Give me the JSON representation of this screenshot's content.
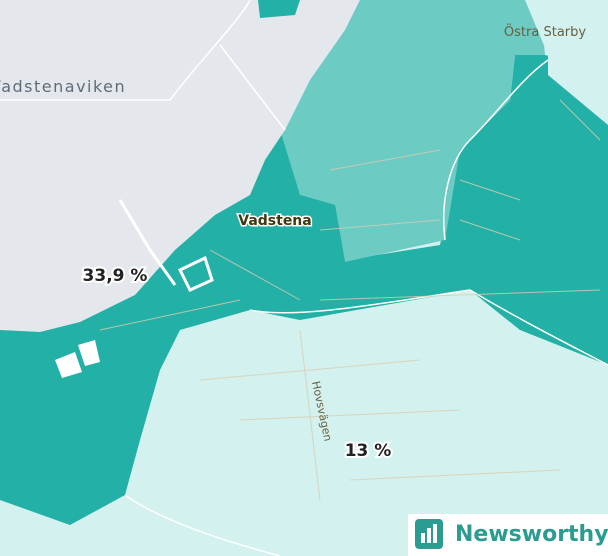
{
  "map": {
    "places": [
      "Vadstenaviken",
      "Östra Starby",
      "Vadstena"
    ],
    "streets": [
      "Hovsvägen"
    ],
    "region_labels": [
      "33,9 %",
      "13 %"
    ],
    "logo": "Newsworthy"
  }
}
